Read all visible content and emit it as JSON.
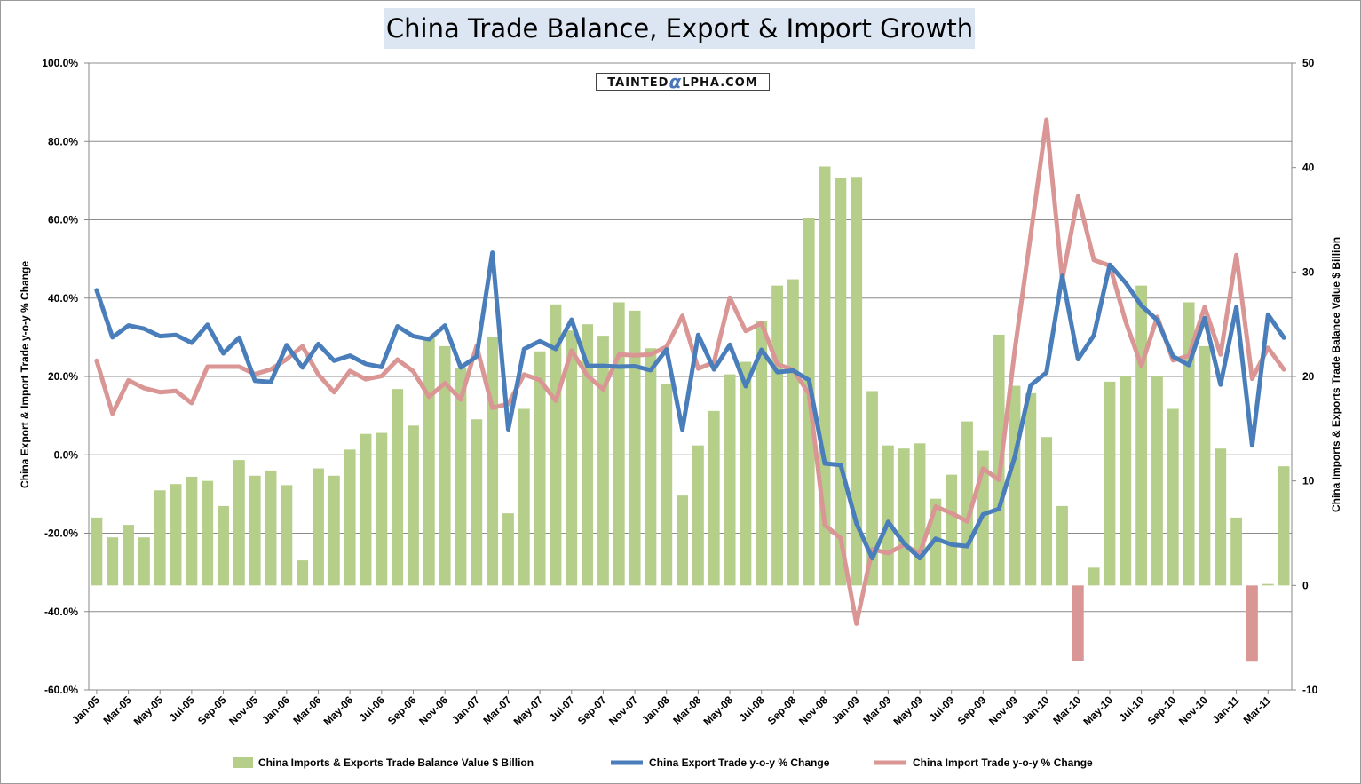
{
  "title": "China Trade Balance, Export & Import Growth",
  "watermark": {
    "before": "TAINTED",
    "alpha": "α",
    "after": "LPHA.COM"
  },
  "colors": {
    "balance_positive": "#b5cf8a",
    "balance_negative": "#d99694",
    "export": "#4a7ebb",
    "import": "#d99694",
    "grid": "#8c8c8c"
  },
  "chart_data": {
    "type": "bar",
    "x": [
      "Jan-05",
      "Feb-05",
      "Mar-05",
      "Apr-05",
      "May-05",
      "Jun-05",
      "Jul-05",
      "Aug-05",
      "Sep-05",
      "Oct-05",
      "Nov-05",
      "Dec-05",
      "Jan-06",
      "Feb-06",
      "Mar-06",
      "Apr-06",
      "May-06",
      "Jun-06",
      "Jul-06",
      "Aug-06",
      "Sep-06",
      "Oct-06",
      "Nov-06",
      "Dec-06",
      "Jan-07",
      "Feb-07",
      "Mar-07",
      "Apr-07",
      "May-07",
      "Jun-07",
      "Jul-07",
      "Aug-07",
      "Sep-07",
      "Oct-07",
      "Nov-07",
      "Dec-07",
      "Jan-08",
      "Feb-08",
      "Mar-08",
      "Apr-08",
      "May-08",
      "Jun-08",
      "Jul-08",
      "Aug-08",
      "Sep-08",
      "Oct-08",
      "Nov-08",
      "Dec-08",
      "Jan-09",
      "Feb-09",
      "Mar-09",
      "Apr-09",
      "May-09",
      "Jun-09",
      "Jul-09",
      "Aug-09",
      "Sep-09",
      "Oct-09",
      "Nov-09",
      "Dec-09",
      "Jan-10",
      "Feb-10",
      "Mar-10",
      "Apr-10",
      "May-10",
      "Jun-10",
      "Jul-10",
      "Aug-10",
      "Sep-10",
      "Oct-10",
      "Nov-10",
      "Dec-10",
      "Jan-11",
      "Feb-11",
      "Mar-11",
      "Apr-11"
    ],
    "x_tick_labels": [
      "Jan-05",
      "Mar-05",
      "May-05",
      "Jul-05",
      "Sep-05",
      "Nov-05",
      "Jan-06",
      "Mar-06",
      "May-06",
      "Jul-06",
      "Sep-06",
      "Nov-06",
      "Jan-07",
      "Mar-07",
      "May-07",
      "Jul-07",
      "Sep-07",
      "Nov-07",
      "Jan-08",
      "Mar-08",
      "May-08",
      "Jul-08",
      "Sep-08",
      "Nov-08",
      "Jan-09",
      "Mar-09",
      "May-09",
      "Jul-09",
      "Sep-09",
      "Nov-09",
      "Jan-10",
      "Mar-10",
      "May-10",
      "Jul-10",
      "Sep-10",
      "Nov-10",
      "Jan-11",
      "Mar-11"
    ],
    "ylabel_left": "China Export & Import Trade y-o-y % Change",
    "ylabel_right": "China Imports & Exports Trade Balance Value $ Billion",
    "ylim_left": [
      -60,
      100
    ],
    "yticks_left": [
      "-60.0%",
      "-40.0%",
      "-20.0%",
      "0.0%",
      "20.0%",
      "40.0%",
      "60.0%",
      "80.0%",
      "100.0%"
    ],
    "ylim_right": [
      -10,
      50
    ],
    "yticks_right": [
      "-10",
      "0",
      "10",
      "20",
      "30",
      "40",
      "50"
    ],
    "grid": true,
    "legend_position": "bottom",
    "series": [
      {
        "name": "China Imports & Exports Trade Balance Value $ Billion",
        "type": "bar",
        "axis": "right",
        "values": [
          6.5,
          4.6,
          5.8,
          4.6,
          9.1,
          9.7,
          10.4,
          10.0,
          7.6,
          12.0,
          10.5,
          11.0,
          9.6,
          2.4,
          11.2,
          10.5,
          13.0,
          14.5,
          14.6,
          18.8,
          15.3,
          23.8,
          22.9,
          20.8,
          15.9,
          23.8,
          6.9,
          16.9,
          22.4,
          26.9,
          24.4,
          25.0,
          23.9,
          27.1,
          26.3,
          22.7,
          19.3,
          8.6,
          13.4,
          16.7,
          20.2,
          21.4,
          25.3,
          28.7,
          29.3,
          35.2,
          40.1,
          39.0,
          39.1,
          18.6,
          13.4,
          13.1,
          13.6,
          8.3,
          10.6,
          15.7,
          12.9,
          24.0,
          19.1,
          18.4,
          14.2,
          7.6,
          -7.2,
          1.7,
          19.5,
          20.0,
          28.7,
          20.0,
          16.9,
          27.1,
          22.9,
          13.1,
          6.5,
          -7.3,
          0.14,
          11.4
        ]
      },
      {
        "name": "China Export Trade y-o-y % Change",
        "type": "line",
        "axis": "left",
        "values": [
          42,
          30,
          33,
          32.2,
          30.3,
          30.6,
          28.6,
          33.2,
          25.9,
          29.9,
          18.9,
          18.6,
          28,
          22.3,
          28.3,
          24,
          25.3,
          23.2,
          22.4,
          32.8,
          30.3,
          29.5,
          33,
          22.3,
          25.1,
          51.6,
          6.5,
          27,
          29,
          27,
          34.5,
          22.7,
          22.7,
          22.5,
          22.6,
          21.6,
          26.9,
          6.4,
          30.6,
          21.8,
          28.1,
          17.5,
          26.8,
          21.1,
          21.5,
          19.1,
          -2.2,
          -2.6,
          -17.5,
          -26.4,
          -17.1,
          -22.6,
          -26.4,
          -21.4,
          -22.9,
          -23.3,
          -15.2,
          -13.8,
          -0.5,
          17.7,
          21,
          45.7,
          24.4,
          30.5,
          48.5,
          43.9,
          38.1,
          34.4,
          25.1,
          22.9,
          34.9,
          17.9,
          37.7,
          2.4,
          35.8,
          29.9
        ]
      },
      {
        "name": "China Import Trade y-o-y % Change",
        "type": "line",
        "axis": "left",
        "values": [
          24,
          10.5,
          19,
          17,
          16,
          16.3,
          13.2,
          22.5,
          22.5,
          22.5,
          20.6,
          21.8,
          24.4,
          27.7,
          20.5,
          16,
          21.4,
          19.3,
          20.1,
          24.3,
          21.3,
          14.8,
          18.3,
          14.1,
          27.8,
          12,
          13,
          20.5,
          19.1,
          13.8,
          26.6,
          20.2,
          16.7,
          25.6,
          25.4,
          25.6,
          27.6,
          35.5,
          22,
          23.6,
          40.1,
          31.6,
          33.6,
          23.1,
          21.7,
          15.6,
          -17.9,
          -21.3,
          -43.1,
          -24.1,
          -25.1,
          -23,
          -25.2,
          -13.2,
          -14.9,
          -17,
          -3.5,
          -6.4,
          26.7,
          55.9,
          85.5,
          44.7,
          66,
          49.7,
          48.3,
          34.1,
          22.7,
          35.2,
          24.1,
          25.3,
          37.7,
          25.6,
          51,
          19.4,
          27.3,
          21.8
        ]
      }
    ]
  }
}
